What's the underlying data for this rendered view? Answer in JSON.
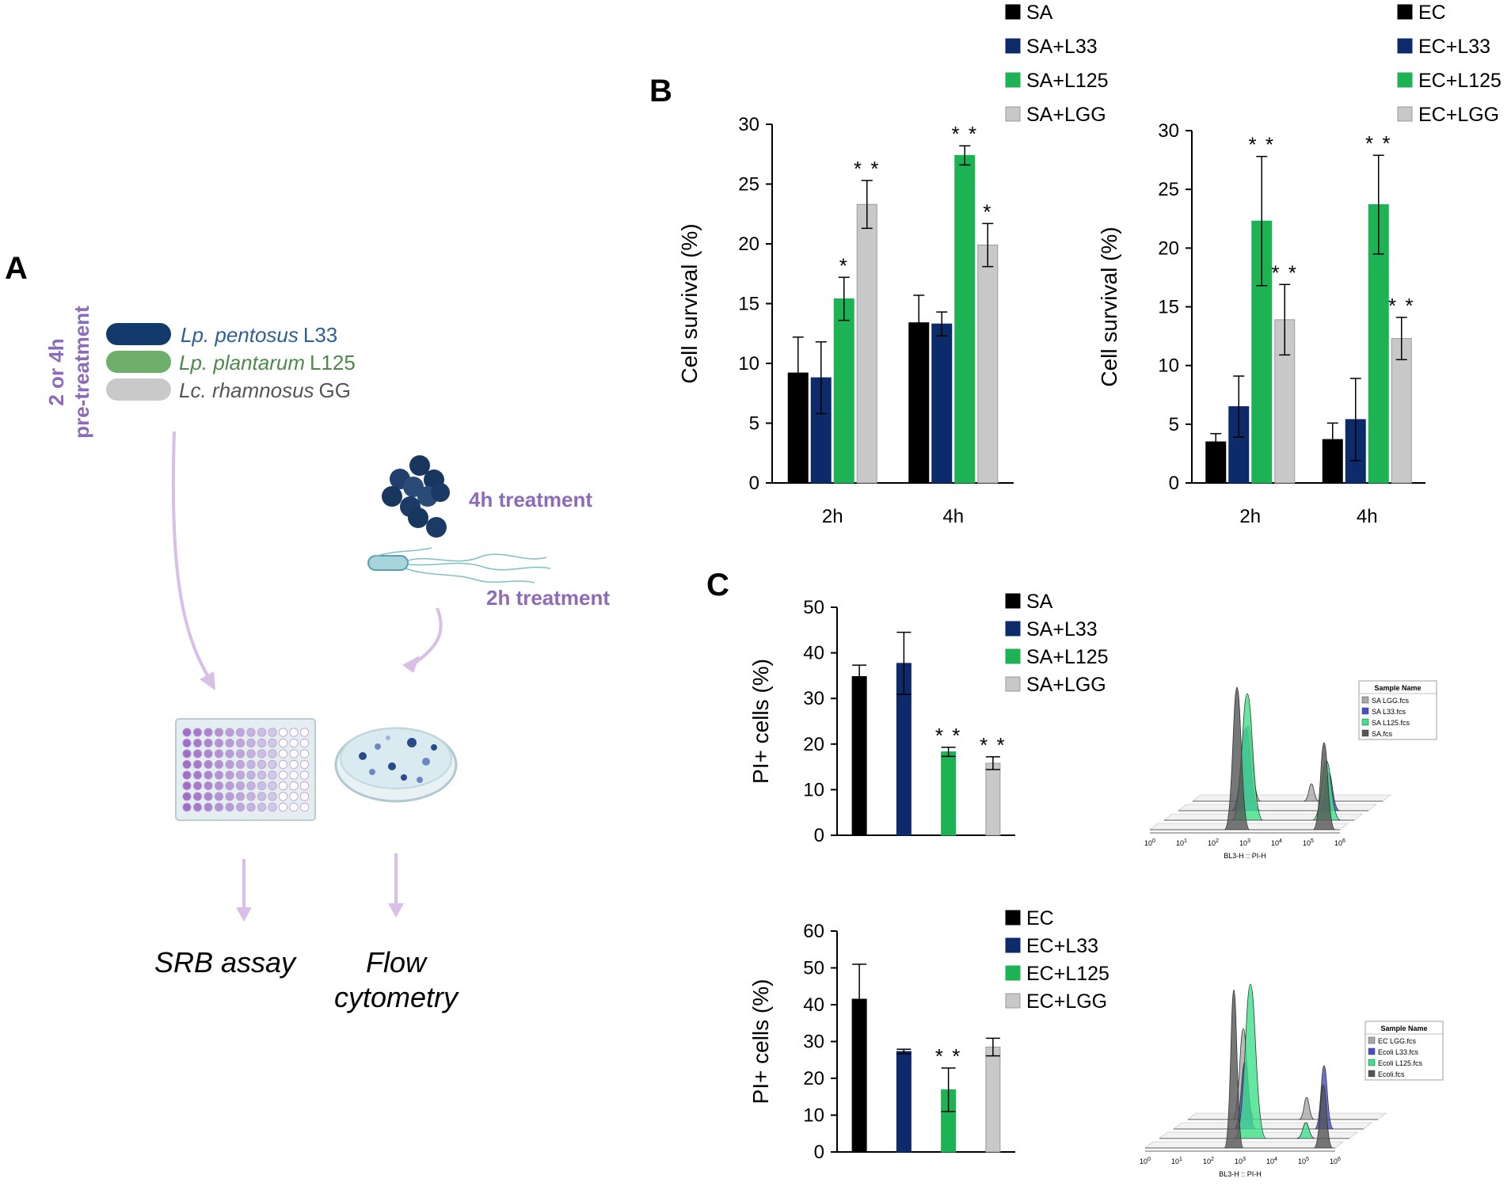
{
  "colors": {
    "black": "#000000",
    "navy": "#0d2a6b",
    "green": "#1db254",
    "gray": "#c8c8c8",
    "purple": "#8e6bb8",
    "purple_arrow": "#d9bfe8"
  },
  "panel_a": {
    "letter": "A",
    "pretreat_line1": "2 or 4h",
    "pretreat_line2": "pre-treatment",
    "strains": [
      {
        "genus": "Lp. pentosus",
        "code": "L33",
        "color": "#2d5f91",
        "pill": "#123a6a"
      },
      {
        "genus": "Lp. plantarum",
        "code": "L125",
        "color": "#4d8a4a",
        "pill": "#6cae6a"
      },
      {
        "genus": "Lc. rhamnosus",
        "code": "GG",
        "color": "#555555",
        "pill": "#c9c9c9"
      }
    ],
    "treat4h": "4h treatment",
    "treat2h": "2h treatment",
    "srb": "SRB assay",
    "flow1": "Flow",
    "flow2": "cytometry"
  },
  "panel_b": {
    "letter": "B"
  },
  "panel_c": {
    "letter": "C"
  },
  "chart_data": [
    {
      "id": "b_sa",
      "type": "bar",
      "ylabel": "Cell survival (%)",
      "ylim": [
        0,
        30
      ],
      "yticks": [
        0,
        5,
        10,
        15,
        20,
        25,
        30
      ],
      "categories": [
        "2h",
        "4h"
      ],
      "series": [
        {
          "name": "SA",
          "color": "#000000",
          "values": [
            9.2,
            13.4
          ],
          "errors": [
            3.0,
            2.3
          ],
          "sig": [
            "",
            ""
          ]
        },
        {
          "name": "SA+L33",
          "color": "#0d2a6b",
          "values": [
            8.8,
            13.3
          ],
          "errors": [
            3.0,
            1.0
          ],
          "sig": [
            "",
            ""
          ]
        },
        {
          "name": "SA+L125",
          "color": "#1db254",
          "values": [
            15.4,
            27.4
          ],
          "errors": [
            1.8,
            0.8
          ],
          "sig": [
            "*",
            "**"
          ]
        },
        {
          "name": "SA+LGG",
          "color": "#c8c8c8",
          "values": [
            23.3,
            19.9
          ],
          "errors": [
            2.0,
            1.8
          ],
          "sig": [
            "**",
            "*"
          ]
        }
      ]
    },
    {
      "id": "b_ec",
      "type": "bar",
      "ylabel": "Cell survival (%)",
      "ylim": [
        0,
        30
      ],
      "yticks": [
        0,
        5,
        10,
        15,
        20,
        25,
        30
      ],
      "categories": [
        "2h",
        "4h"
      ],
      "series": [
        {
          "name": "EC",
          "color": "#000000",
          "values": [
            3.5,
            3.7
          ],
          "errors": [
            0.7,
            1.4
          ],
          "sig": [
            "",
            ""
          ]
        },
        {
          "name": "EC+L33",
          "color": "#0d2a6b",
          "values": [
            6.5,
            5.4
          ],
          "errors": [
            2.6,
            3.5
          ],
          "sig": [
            "",
            ""
          ]
        },
        {
          "name": "EC+L125",
          "color": "#1db254",
          "values": [
            22.3,
            23.7
          ],
          "errors": [
            5.5,
            4.2
          ],
          "sig": [
            "**",
            "**"
          ]
        },
        {
          "name": "EC+LGG",
          "color": "#c8c8c8",
          "values": [
            13.9,
            12.3
          ],
          "errors": [
            3.0,
            1.8
          ],
          "sig": [
            "**",
            "**"
          ]
        }
      ]
    },
    {
      "id": "c_sa",
      "type": "bar",
      "ylabel": "PI+ cells (%)",
      "ylim": [
        0,
        50
      ],
      "yticks": [
        0,
        10,
        20,
        30,
        40,
        50
      ],
      "categories": [
        "SA",
        "SA+L33",
        "SA+L125",
        "SA+LGG"
      ],
      "series": [
        {
          "name": "SA",
          "color": "#000000",
          "value": 34.8,
          "error": 2.5,
          "sig": ""
        },
        {
          "name": "SA+L33",
          "color": "#0d2a6b",
          "value": 37.7,
          "error": 6.8,
          "sig": ""
        },
        {
          "name": "SA+L125",
          "color": "#1db254",
          "value": 18.3,
          "error": 1.0,
          "sig": "**"
        },
        {
          "name": "SA+LGG",
          "color": "#c8c8c8",
          "value": 15.8,
          "error": 1.4,
          "sig": "**"
        }
      ]
    },
    {
      "id": "c_ec",
      "type": "bar",
      "ylabel": "PI+ cells (%)",
      "ylim": [
        0,
        60
      ],
      "yticks": [
        0,
        10,
        20,
        30,
        40,
        50,
        60
      ],
      "categories": [
        "EC",
        "EC+L33",
        "EC+L125",
        "EC+LGG"
      ],
      "series": [
        {
          "name": "EC",
          "color": "#000000",
          "value": 41.5,
          "error": 9.5,
          "sig": ""
        },
        {
          "name": "EC+L33",
          "color": "#0d2a6b",
          "value": 27.3,
          "error": 0.6,
          "sig": ""
        },
        {
          "name": "EC+L125",
          "color": "#1db254",
          "value": 16.9,
          "error": 5.9,
          "sig": "**"
        },
        {
          "name": "EC+LGG",
          "color": "#c8c8c8",
          "value": 28.5,
          "error": 2.4,
          "sig": ""
        }
      ]
    }
  ],
  "histograms": [
    {
      "legend_title": "Sample Name",
      "samples": [
        "SA LGG.fcs",
        "SA L33.fcs",
        "SA L125.fcs",
        "SA.fcs"
      ],
      "xlabel": "BL3-H :: PI-H",
      "xticks": [
        "10^0",
        "10^1",
        "10^2",
        "10^3",
        "10^4",
        "10^5",
        "10^6"
      ]
    },
    {
      "legend_title": "Sample Name",
      "samples": [
        "EC LGG.fcs",
        "Ecoli L33.fcs",
        "Ecoli L125.fcs",
        "Ecoli.fcs"
      ],
      "xlabel": "BL3-H :: PI-H",
      "xticks": [
        "10^0",
        "10^1",
        "10^2",
        "10^3",
        "10^4",
        "10^5",
        "10^6"
      ]
    }
  ]
}
